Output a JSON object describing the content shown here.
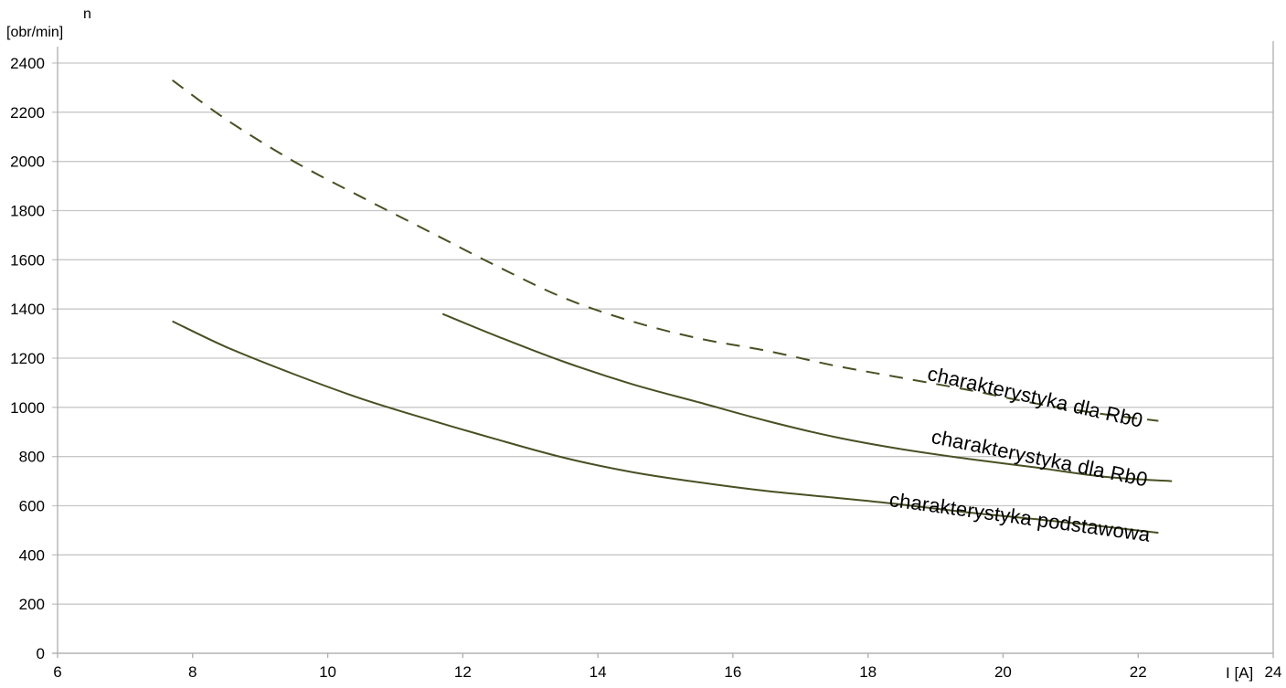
{
  "axes": {
    "y_title_line1": "n",
    "y_title_line2": "[obr/min]",
    "x_title": "I [A]"
  },
  "colors": {
    "curve": "#4a4f23",
    "gridline": "#c7c7c7",
    "axis_line": "#adadad",
    "text": "#000000",
    "background": "#ffffff"
  },
  "chart_data": {
    "type": "line",
    "title": "",
    "xlabel": "I [A]",
    "ylabel": "n [obr/min]",
    "xlim": [
      6,
      24
    ],
    "ylim": [
      0,
      2400
    ],
    "x_ticks": [
      6,
      8,
      10,
      12,
      14,
      16,
      18,
      20,
      22,
      24
    ],
    "y_ticks": [
      0,
      200,
      400,
      600,
      800,
      1000,
      1200,
      1400,
      1600,
      1800,
      2000,
      2200,
      2400
    ],
    "grid": "horizontal-only",
    "legend_position": "inline-labels-on-curves",
    "series": [
      {
        "name": "charakterystyka-dla-Rb0-dashed",
        "label": "charakterystyka dla Rb0",
        "style": "dashed",
        "color": "#4a4f23",
        "x": [
          7.7,
          8.5,
          9.5,
          10.5,
          11.5,
          12.5,
          13.5,
          14.5,
          15.5,
          16.5,
          17.5,
          18.5,
          19.5,
          20.5,
          21.5,
          22.3
        ],
        "y": [
          2330,
          2170,
          2000,
          1855,
          1715,
          1575,
          1445,
          1350,
          1280,
          1230,
          1170,
          1120,
          1070,
          1015,
          972,
          945
        ]
      },
      {
        "name": "charakterystyka-dla-Rb0-solid",
        "label": "charakterystyka dla Rb0",
        "style": "solid",
        "color": "#4a4f23",
        "x": [
          11.7,
          12.5,
          13.5,
          14.5,
          15.5,
          16.5,
          17.5,
          18.5,
          19.5,
          20.5,
          21.5,
          22.5
        ],
        "y": [
          1380,
          1290,
          1185,
          1095,
          1020,
          945,
          880,
          830,
          790,
          755,
          718,
          700
        ]
      },
      {
        "name": "charakterystyka-podstawowa",
        "label": "charakterystyka podstawowa",
        "style": "solid",
        "color": "#4a4f23",
        "x": [
          7.7,
          8.5,
          9.5,
          10.5,
          11.5,
          12.5,
          13.5,
          14.5,
          15.5,
          16.5,
          17.5,
          18.5,
          19.5,
          20.5,
          21.5,
          22.3
        ],
        "y": [
          1350,
          1245,
          1135,
          1035,
          950,
          870,
          795,
          737,
          695,
          660,
          633,
          605,
          572,
          545,
          515,
          490
        ]
      }
    ]
  }
}
